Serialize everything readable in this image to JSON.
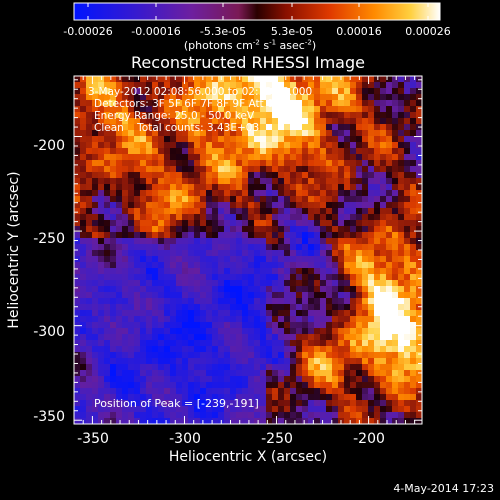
{
  "colorbar": {
    "ticks": [
      "-0.00026",
      "-0.00016",
      "-5.3e-05",
      "5.3e-05",
      "0.00016",
      "0.00026"
    ],
    "unit_prefix": "(photons cm",
    "unit_sup1": "-2",
    "unit_mid1": " s",
    "unit_sup2": "-1",
    "unit_mid2": " asec",
    "unit_sup3": "-2",
    "unit_suffix": ")"
  },
  "title": "Reconstructed RHESSI Image",
  "annotations": {
    "time_range": "3-May-2012 02:08:56.000 to 02:12:48.000",
    "detectors": "Detectors: 3F 5F 6F 7F 8F 9F Att 0",
    "energy": "Energy Range: 25.0 - 50.0 keV",
    "algorithm": "Clean    Total counts: 3.43E+03",
    "peak": "Position of Peak = [-239,-191]"
  },
  "axes": {
    "xlabel": "Heliocentric X (arcsec)",
    "ylabel": "Heliocentric Y (arcsec)",
    "xticks": [
      "-350",
      "-300",
      "-250",
      "-200"
    ],
    "yticks": [
      "-200",
      "-250",
      "-300",
      "-350"
    ],
    "xlim": [
      -360,
      -171
    ],
    "ylim": [
      -352,
      -168
    ]
  },
  "timestamp": "4-May-2014 17:23",
  "colors": {
    "background": "#000000",
    "foreground": "#ffffff"
  }
}
